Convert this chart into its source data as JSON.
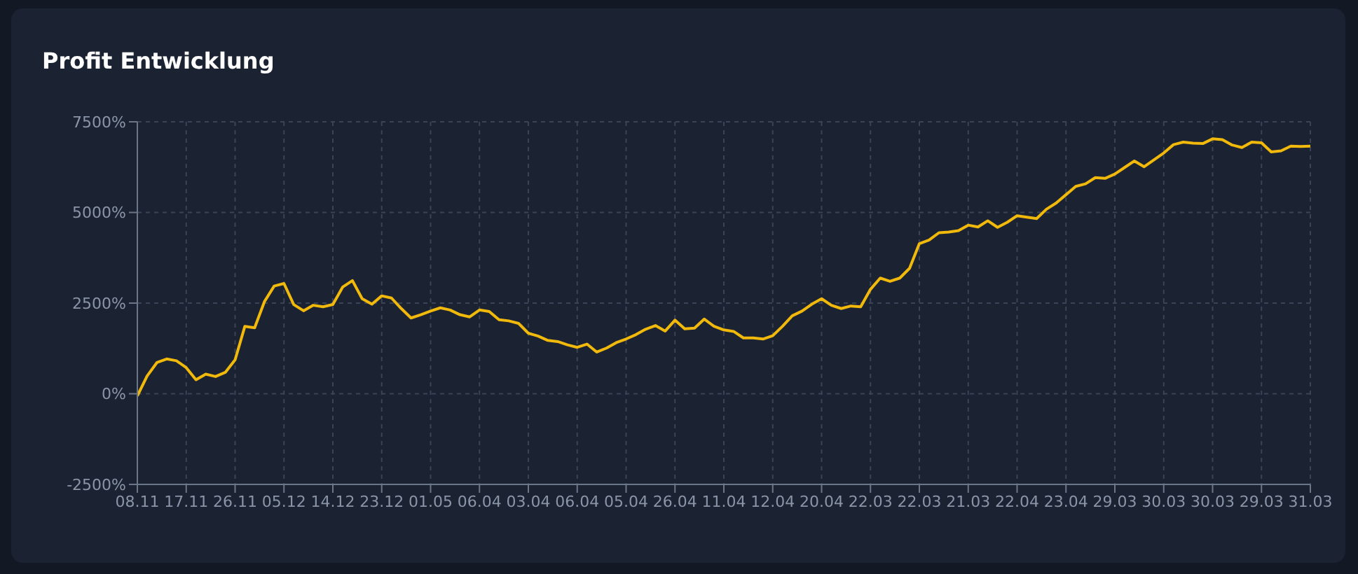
{
  "chart_data": {
    "type": "line",
    "title": "Profit Entwicklung",
    "categories": [
      "08.11",
      null,
      null,
      null,
      null,
      "17.11",
      null,
      null,
      null,
      null,
      "26.11",
      null,
      null,
      null,
      null,
      "05.12",
      null,
      null,
      null,
      null,
      "14.12",
      null,
      null,
      null,
      null,
      "23.12",
      null,
      null,
      null,
      null,
      "01.05",
      null,
      null,
      null,
      null,
      "06.04",
      null,
      null,
      null,
      null,
      "03.04",
      null,
      null,
      null,
      null,
      "06.04",
      null,
      null,
      null,
      null,
      "05.04",
      null,
      null,
      null,
      null,
      "26.04",
      null,
      null,
      null,
      null,
      "11.04",
      null,
      null,
      null,
      null,
      "12.04",
      null,
      null,
      null,
      null,
      "20.04",
      null,
      null,
      null,
      null,
      "22.03",
      null,
      null,
      null,
      null,
      "22.03",
      null,
      null,
      null,
      null,
      "21.03",
      null,
      null,
      null,
      null,
      "22.04",
      null,
      null,
      null,
      null,
      "23.04",
      null,
      null,
      null,
      null,
      "29.03",
      null,
      null,
      null,
      null,
      "30.03",
      null,
      null,
      null,
      null,
      "30.03",
      null,
      null,
      null,
      null,
      "29.03",
      null,
      null,
      null,
      null,
      "31.03"
    ],
    "series": [
      {
        "color": "#f0b90b",
        "values": [
          -60,
          490,
          860,
          960,
          910,
          720,
          385,
          540,
          475,
          590,
          935,
          1860,
          1820,
          2540,
          2970,
          3040,
          2460,
          2290,
          2440,
          2400,
          2460,
          2940,
          3120,
          2620,
          2470,
          2700,
          2640,
          2350,
          2090,
          2180,
          2280,
          2370,
          2310,
          2180,
          2120,
          2310,
          2270,
          2040,
          2010,
          1940,
          1670,
          1590,
          1470,
          1440,
          1350,
          1280,
          1370,
          1150,
          1260,
          1410,
          1510,
          1630,
          1780,
          1880,
          1730,
          2030,
          1790,
          1810,
          2060,
          1860,
          1760,
          1720,
          1540,
          1540,
          1510,
          1600,
          1860,
          2150,
          2280,
          2470,
          2620,
          2440,
          2350,
          2420,
          2400,
          2880,
          3190,
          3100,
          3190,
          3460,
          4140,
          4240,
          4440,
          4460,
          4500,
          4650,
          4600,
          4770,
          4590,
          4730,
          4910,
          4870,
          4830,
          5090,
          5260,
          5490,
          5720,
          5790,
          5960,
          5940,
          6060,
          6240,
          6420,
          6260,
          6450,
          6640,
          6870,
          6940,
          6910,
          6900,
          7030,
          7010,
          6860,
          6790,
          6940,
          6920,
          6670,
          6700,
          6830,
          6820,
          6830
        ]
      }
    ],
    "ylim": [
      -2500,
      7500
    ],
    "yticks": [
      {
        "value": -2500,
        "label": "-2500%"
      },
      {
        "value": 0,
        "label": "0%"
      },
      {
        "value": 2500,
        "label": "2500%"
      },
      {
        "value": 5000,
        "label": "5000%"
      },
      {
        "value": 7500,
        "label": "7500%"
      }
    ],
    "grid": true,
    "legend": false,
    "marker": "none",
    "line_style": "solid"
  }
}
